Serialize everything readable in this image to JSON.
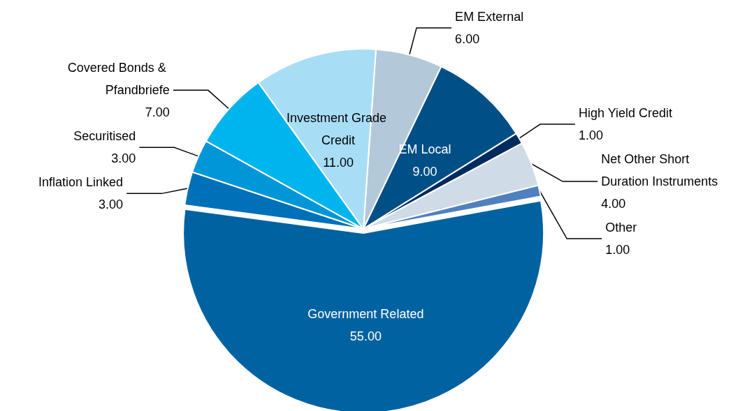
{
  "chart_data": {
    "type": "pie",
    "categories": [
      "EM External",
      "EM Local",
      "High Yield Credit",
      "Net Other Short Duration Instruments",
      "Other",
      "Government Related",
      "Inflation Linked",
      "Securitised",
      "Covered Bonds & Pfandbriefe",
      "Investment Grade Credit"
    ],
    "values": [
      6,
      9,
      1,
      4,
      1,
      55,
      3,
      3,
      7,
      11
    ],
    "value_labels": [
      "6.00",
      "9.00",
      "1.00",
      "4.00",
      "1.00",
      "55.00",
      "3.00",
      "3.00",
      "7.00",
      "11.00"
    ],
    "colors": [
      "#b3c8d8",
      "#004f87",
      "#002b5f",
      "#cfdce7",
      "#4f80c0",
      "#0062a0",
      "#0070b8",
      "#0096d8",
      "#00b5ee",
      "#a8ddf6"
    ],
    "legend": false
  }
}
